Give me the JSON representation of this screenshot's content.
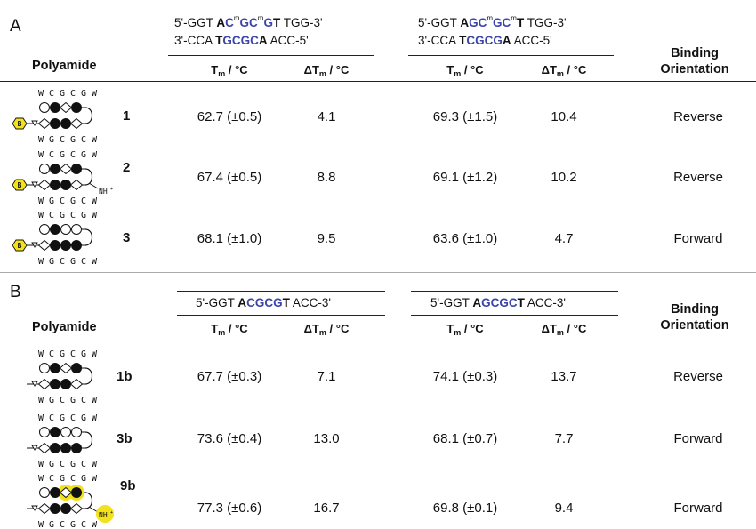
{
  "panelA": {
    "letter": "A",
    "polyamide_header": "Polyamide",
    "orientation_header": [
      "Binding",
      "Orientation"
    ],
    "seq1": {
      "top": [
        [
          "5'-GGT ",
          "t"
        ],
        [
          "A",
          "b"
        ],
        [
          "C",
          "bl"
        ],
        [
          "m",
          "sup"
        ],
        [
          "GC",
          "bl"
        ],
        [
          "m",
          "sup"
        ],
        [
          "G",
          "bl"
        ],
        [
          "T",
          "b"
        ],
        [
          " TGG-3'",
          "t"
        ]
      ],
      "bottom": [
        [
          "3'-CCA ",
          "t"
        ],
        [
          "T",
          "b"
        ],
        [
          "GCGC",
          "bl"
        ],
        [
          "A",
          "b"
        ],
        [
          " ACC-5'",
          "t"
        ]
      ]
    },
    "seq2": {
      "top": [
        [
          "5'-GGT ",
          "t"
        ],
        [
          "A",
          "b"
        ],
        [
          "GC",
          "bl"
        ],
        [
          "m",
          "sup"
        ],
        [
          "GC",
          "bl"
        ],
        [
          "m",
          "sup"
        ],
        [
          "T",
          "b"
        ],
        [
          " TGG-3'",
          "t"
        ]
      ],
      "bottom": [
        [
          "3'-CCA ",
          "t"
        ],
        [
          "T",
          "b"
        ],
        [
          "CGCG",
          "bl"
        ],
        [
          "A",
          "b"
        ],
        [
          " ACC-5'",
          "t"
        ]
      ]
    },
    "col_tm": "T",
    "col_dtm": "ΔT",
    "col_sub": "m",
    "col_unit": " / °C",
    "rows": [
      {
        "compound": "1",
        "top_letters": "WCGCGW",
        "bot_letters": "WGCGCW",
        "tm1": "62.7 (±0.5)",
        "dtm1": "4.1",
        "tm2": "69.3 (±1.5)",
        "dtm2": "10.4",
        "orientation": "Reverse"
      },
      {
        "compound": "2",
        "top_letters": "WCGCGW",
        "bot_letters": "WGCGCW",
        "tm1": "67.4 (±0.5)",
        "dtm1": "8.8",
        "tm2": "69.1 (±1.2)",
        "dtm2": "10.2",
        "orientation": "Reverse"
      },
      {
        "compound": "3",
        "top_letters": "WCGCGW",
        "bot_letters": "WGCGCW",
        "tm1": "68.1 (±1.0)",
        "dtm1": "9.5",
        "tm2": "63.6 (±1.0)",
        "dtm2": "4.7",
        "orientation": "Forward"
      }
    ]
  },
  "panelB": {
    "letter": "B",
    "polyamide_header": "Polyamide",
    "orientation_header": [
      "Binding",
      "Orientation"
    ],
    "seq1": {
      "top": [
        [
          "5'-GGT ",
          "t"
        ],
        [
          "A",
          "b"
        ],
        [
          "CGCG",
          "bl"
        ],
        [
          "T",
          "b"
        ],
        [
          " ACC-3'",
          "t"
        ]
      ]
    },
    "seq2": {
      "top": [
        [
          "5'-GGT ",
          "t"
        ],
        [
          "A",
          "b"
        ],
        [
          "GCGC",
          "bl"
        ],
        [
          "T",
          "b"
        ],
        [
          " ACC-3'",
          "t"
        ]
      ]
    },
    "rows": [
      {
        "compound": "1b",
        "top_letters": "WCGCGW",
        "bot_letters": "WGCGCW",
        "tm1": "67.7 (±0.3)",
        "dtm1": "7.1",
        "tm2": "74.1 (±0.3)",
        "dtm2": "13.7",
        "orientation": "Reverse"
      },
      {
        "compound": "3b",
        "top_letters": "WCGCGW",
        "bot_letters": "WGCGCW",
        "tm1": "73.6 (±0.4)",
        "dtm1": "13.0",
        "tm2": "68.1 (±0.7)",
        "dtm2": "7.7",
        "orientation": "Forward"
      },
      {
        "compound": "9b",
        "top_letters": "WCGCGW",
        "bot_letters": "WGCGCW",
        "tm1": "77.3 (±0.6)",
        "dtm1": "16.7",
        "tm2": "69.8 (±0.1)",
        "dtm2": "9.4",
        "orientation": "Forward"
      }
    ]
  },
  "diagram_labels": {
    "biotin": "B",
    "amine": "NH",
    "amine_sub": "3",
    "amine_sup": "+"
  },
  "colors": {
    "blue_base": "#3c45a8",
    "highlight_yellow": "#f3e21b",
    "text": "#111111"
  }
}
